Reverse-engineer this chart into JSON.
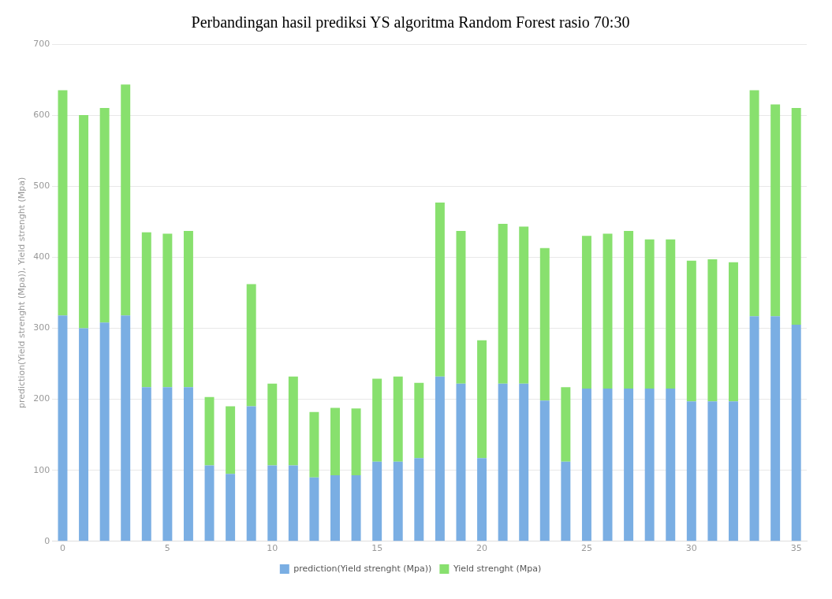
{
  "chart_data": {
    "type": "bar",
    "title": "Perbandingan hasil prediksi YS algoritma Random Forest rasio 70:30",
    "ylabel": "prediction(Yield strenght (Mpa)), Yield strenght (Mpa)",
    "categories": [
      "0",
      null,
      null,
      null,
      null,
      "5",
      null,
      null,
      null,
      null,
      "10",
      null,
      null,
      null,
      null,
      "15",
      null,
      null,
      null,
      null,
      "20",
      null,
      null,
      null,
      null,
      "25",
      null,
      null,
      null,
      null,
      "30",
      null,
      null,
      null,
      null,
      "35"
    ],
    "stacked": true,
    "series": [
      {
        "name": "prediction(Yield strenght (Mpa))",
        "color": "#7aaee3",
        "values": [
          318,
          300,
          308,
          318,
          217,
          217,
          217,
          107,
          95,
          190,
          107,
          107,
          90,
          93,
          93,
          112,
          112,
          117,
          232,
          222,
          117,
          222,
          222,
          198,
          112,
          215,
          215,
          215,
          215,
          215,
          197,
          197,
          197,
          317,
          317,
          305
        ]
      },
      {
        "name": "Yield strenght (Mpa)",
        "color": "#88e06e",
        "values": [
          317,
          300,
          302,
          325,
          218,
          216,
          220,
          96,
          95,
          172,
          115,
          125,
          92,
          95,
          94,
          117,
          120,
          106,
          245,
          215,
          166,
          225,
          221,
          215,
          105,
          215,
          218,
          222,
          210,
          210,
          198,
          200,
          196,
          318,
          298,
          305
        ]
      }
    ],
    "ylim": [
      0,
      700
    ],
    "yticks": [
      0,
      100,
      200,
      300,
      400,
      500,
      600,
      700
    ],
    "grid": "y",
    "legend": "bottom"
  }
}
